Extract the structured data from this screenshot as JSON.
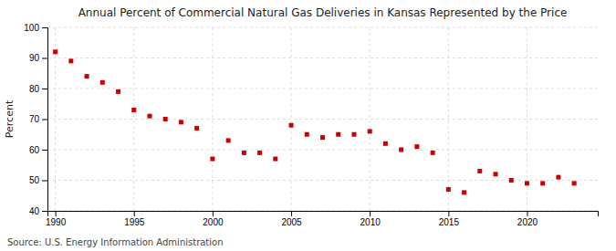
{
  "chart_data": {
    "type": "scatter",
    "title": "Annual Percent of Commercial Natural Gas Deliveries in Kansas Represented by the Price",
    "ylabel": "Percent",
    "source": "Source: U.S. Energy Information Administration",
    "x": [
      1990,
      1991,
      1992,
      1993,
      1994,
      1995,
      1996,
      1997,
      1998,
      1999,
      2000,
      2001,
      2002,
      2003,
      2004,
      2005,
      2006,
      2007,
      2008,
      2009,
      2010,
      2011,
      2012,
      2013,
      2014,
      2015,
      2016,
      2017,
      2018,
      2019,
      2020,
      2021,
      2022,
      2023
    ],
    "values": [
      92,
      89,
      84,
      82,
      79,
      73,
      71,
      70,
      69,
      67,
      57,
      63,
      59,
      59,
      57,
      68,
      65,
      64,
      65,
      65,
      66,
      62,
      60,
      61,
      59,
      47,
      46,
      53,
      52,
      50,
      49,
      49,
      51,
      49
    ],
    "xlim": [
      1989.5,
      2024.5
    ],
    "ylim": [
      40,
      100
    ],
    "xticks": [
      1990,
      1995,
      2000,
      2005,
      2010,
      2015,
      2020
    ],
    "yticks": [
      40,
      50,
      60,
      70,
      80,
      90,
      100
    ],
    "color": "#cc0000",
    "marker": "square",
    "grid": true
  }
}
